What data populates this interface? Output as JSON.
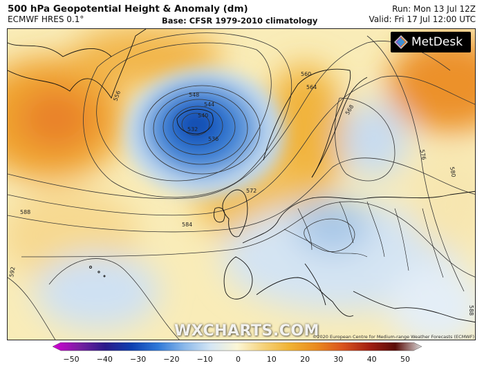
{
  "header": {
    "title": "500 hPa Geopotential Height & Anomaly (dm)",
    "model": "ECMWF HRES 0.1°",
    "base": "Base: CFSR 1979-2010 climatology",
    "run": "Run: Mon 13 Jul 12Z",
    "valid": "Valid: Fri 17 Jul 12:00 UTC"
  },
  "logo": {
    "text": "MetDesk",
    "icon": "metdesk-logo-icon"
  },
  "watermark": "WXCHARTS.COM",
  "copyright": "©2020 European Centre for Medium-range Weather Forecasts (ECMWF)",
  "contour_labels": [
    "532",
    "536",
    "540",
    "544",
    "548",
    "556",
    "560",
    "564",
    "568",
    "572",
    "576",
    "580",
    "584",
    "588",
    "592",
    "588",
    "568"
  ],
  "colorbar": {
    "ticks": [
      "−50",
      "−40",
      "−30",
      "−20",
      "−10",
      "0",
      "10",
      "20",
      "30",
      "40",
      "50"
    ],
    "colors": [
      "#d400d4",
      "#7a1fa2",
      "#2a1a8a",
      "#0d3fb0",
      "#2f78d8",
      "#8ab8ea",
      "#d5e6f4",
      "#fbf6d6",
      "#f5d27a",
      "#f0b233",
      "#ea8a1e",
      "#d9531e",
      "#a31f12",
      "#5a0c08",
      "#d9d9d9"
    ]
  }
}
